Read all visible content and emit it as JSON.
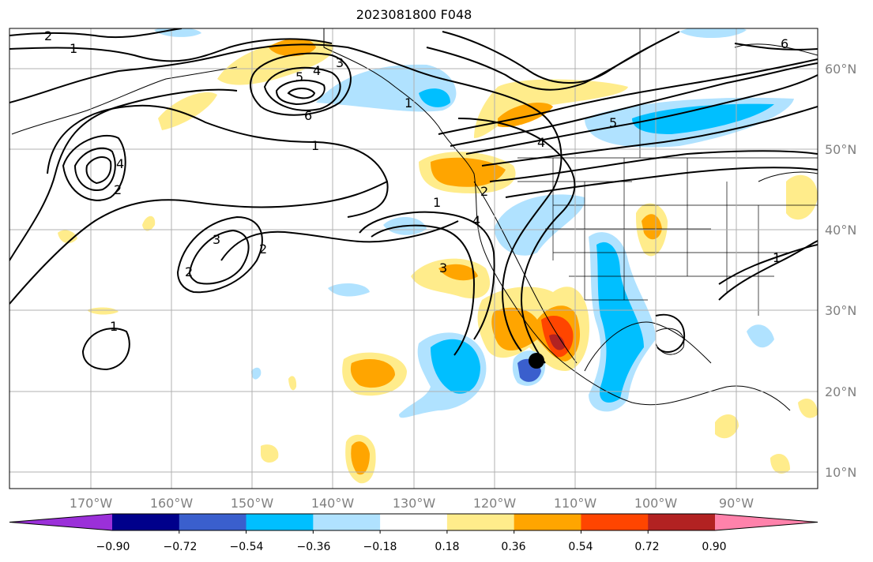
{
  "title": "2023081800 F048",
  "map": {
    "projection": "PlateCarree",
    "lon_range": [
      -180,
      -80
    ],
    "lat_range": [
      8,
      65
    ],
    "lon_ticks": [
      "170°W",
      "160°W",
      "150°W",
      "140°W",
      "130°W",
      "120°W",
      "110°W",
      "100°W",
      "90°W"
    ],
    "lat_ticks": [
      "60°N",
      "50°N",
      "40°N",
      "30°N",
      "20°N",
      "10°N"
    ],
    "grid": true,
    "marker": {
      "label": "storm-center",
      "lon": -115,
      "lat": 23.6,
      "color": "#000000"
    }
  },
  "contour_labels": [
    "2",
    "1",
    "3",
    "5",
    "4",
    "6",
    "1",
    "2",
    "4",
    "2",
    "1",
    "2",
    "4",
    "3",
    "3",
    "2",
    "1",
    "1",
    "5",
    "4",
    "6",
    "1"
  ],
  "colorbar": {
    "colors": [
      "#9b30d9",
      "#00008b",
      "#3a5fcd",
      "#00bfff",
      "#b0e2ff",
      "#ffffff",
      "#ffec8b",
      "#ffa500",
      "#ff4500",
      "#b22222",
      "#ff82ab"
    ],
    "ticks": [
      "−0.90",
      "−0.72",
      "−0.54",
      "−0.36",
      "−0.18",
      "0.18",
      "0.36",
      "0.54",
      "0.72",
      "0.90"
    ],
    "extend": "both"
  }
}
